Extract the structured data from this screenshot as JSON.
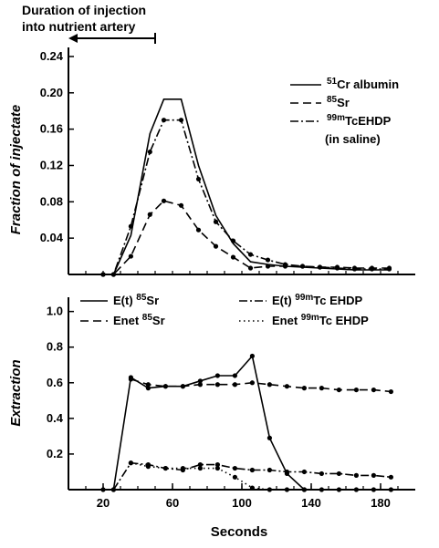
{
  "annotation": {
    "line1": "Duration of injection",
    "line2": "into nutrient artery",
    "x_start": 0,
    "x_end": 50
  },
  "shared_xlabel": "Seconds",
  "chart_data": [
    {
      "type": "line",
      "title": "",
      "xlabel": "",
      "ylabel": "Fraction of injectate",
      "xlim": [
        0,
        200
      ],
      "ylim": [
        0,
        0.25
      ],
      "yticks": [
        "0.04",
        "0.08",
        "0.12",
        "0.16",
        "0.20",
        "0.24"
      ],
      "ytick_values": [
        0.04,
        0.08,
        0.12,
        0.16,
        0.2,
        0.24
      ],
      "legend_position": "top-right",
      "legend": [
        {
          "pre": "",
          "sup": "51",
          "post": "Cr albumin",
          "style": "solid"
        },
        {
          "pre": "",
          "sup": "85",
          "post": "Sr",
          "style": "dashed"
        },
        {
          "pre": "",
          "sup": "99m",
          "post": "TcEHDP",
          "style": "dashdot"
        },
        {
          "pre": "(in saline)",
          "sup": "",
          "post": "",
          "style": "none"
        }
      ],
      "series": [
        {
          "name": "51Cr albumin",
          "style": "solid",
          "markers": false,
          "x": [
            20,
            26,
            36,
            47,
            55,
            65,
            75,
            85,
            95,
            105,
            115,
            125,
            135,
            145,
            155,
            165,
            175,
            185
          ],
          "y": [
            0,
            0,
            0.043,
            0.155,
            0.193,
            0.193,
            0.12,
            0.065,
            0.034,
            0.014,
            0.011,
            0.009,
            0.008,
            0.007,
            0.006,
            0.005,
            0.005,
            0.005
          ]
        },
        {
          "name": "85Sr",
          "style": "dashed",
          "markers": true,
          "x": [
            20,
            26,
            36,
            47,
            55,
            65,
            75,
            85,
            95,
            105,
            115,
            125,
            135,
            145,
            155,
            165,
            175,
            185
          ],
          "y": [
            0,
            0,
            0.02,
            0.066,
            0.081,
            0.076,
            0.049,
            0.031,
            0.019,
            0.007,
            0.009,
            0.009,
            0.009,
            0.008,
            0.008,
            0.007,
            0.007,
            0.007
          ]
        },
        {
          "name": "99mTcEHDP",
          "style": "dashdot",
          "markers": true,
          "x": [
            20,
            26,
            36,
            47,
            55,
            65,
            75,
            85,
            95,
            105,
            115,
            125,
            135,
            145,
            155,
            165,
            175,
            185
          ],
          "y": [
            0,
            0,
            0.053,
            0.135,
            0.17,
            0.17,
            0.105,
            0.058,
            0.037,
            0.022,
            0.016,
            0.011,
            0.009,
            0.008,
            0.007,
            0.006,
            0.006,
            0.006
          ]
        }
      ]
    },
    {
      "type": "line",
      "title": "",
      "xlabel": "Seconds",
      "ylabel": "Extraction",
      "xlim": [
        0,
        200
      ],
      "ylim": [
        0,
        1.08
      ],
      "yticks": [
        "0.2",
        "0.4",
        "0.6",
        "0.8",
        "1.0"
      ],
      "ytick_values": [
        0.2,
        0.4,
        0.6,
        0.8,
        1.0
      ],
      "xticks": [
        "20",
        "60",
        "100",
        "140",
        "180"
      ],
      "xtick_values": [
        20,
        60,
        100,
        140,
        180
      ],
      "legend_position": "top",
      "legend": [
        {
          "pre": "E(t) ",
          "sup": "85",
          "post": "Sr",
          "style": "solid"
        },
        {
          "pre": "E(t) ",
          "sup": "99m",
          "post": "Tc EHDP",
          "style": "dashdot"
        },
        {
          "pre": "Enet ",
          "sup": "85",
          "post": "Sr",
          "style": "dashed"
        },
        {
          "pre": "Enet ",
          "sup": "99m",
          "post": "Tc EHDP",
          "style": "dotted"
        }
      ],
      "series": [
        {
          "name": "E(t) 85Sr",
          "style": "solid",
          "markers": true,
          "x": [
            20,
            26,
            36,
            46,
            56,
            66,
            76,
            86,
            96,
            106,
            116,
            126,
            136
          ],
          "y": [
            0,
            0,
            0.63,
            0.57,
            0.58,
            0.58,
            0.61,
            0.64,
            0.64,
            0.75,
            0.29,
            0.09,
            0
          ]
        },
        {
          "name": "Enet 85Sr",
          "style": "dashed",
          "markers": true,
          "x": [
            36,
            46,
            56,
            66,
            76,
            86,
            96,
            106,
            116,
            126,
            136,
            146,
            156,
            166,
            176,
            186
          ],
          "y": [
            0.62,
            0.59,
            0.58,
            0.58,
            0.59,
            0.59,
            0.59,
            0.6,
            0.59,
            0.58,
            0.57,
            0.57,
            0.56,
            0.56,
            0.56,
            0.55
          ]
        },
        {
          "name": "E(t) 99mTc EHDP",
          "style": "dashdot",
          "markers": true,
          "x": [
            26,
            36,
            46,
            56,
            66,
            76,
            86,
            96,
            106,
            116,
            126,
            136,
            146,
            156,
            166,
            176,
            186
          ],
          "y": [
            0,
            0.15,
            0.14,
            0.12,
            0.11,
            0.14,
            0.14,
            0.12,
            0.11,
            0.11,
            0.1,
            0.1,
            0.09,
            0.09,
            0.08,
            0.08,
            0.07
          ]
        },
        {
          "name": "Enet 99mTc EHDP",
          "style": "dotted",
          "markers": true,
          "x": [
            36,
            46,
            56,
            66,
            76,
            86,
            96,
            106,
            116,
            126,
            136,
            146,
            156,
            166,
            176,
            186
          ],
          "y": [
            0.15,
            0.13,
            0.12,
            0.12,
            0.12,
            0.12,
            0.07,
            0.01,
            0,
            0,
            0,
            0,
            0,
            0,
            0,
            0
          ]
        }
      ]
    }
  ]
}
